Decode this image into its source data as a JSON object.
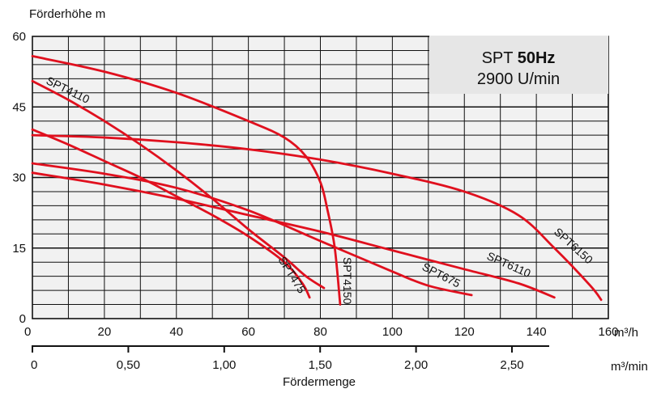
{
  "chart_data": {
    "type": "line",
    "title": "SPT 50Hz",
    "title_plain": "SPT",
    "title_bold": "50Hz",
    "subtitle": "2900 U/min",
    "ylabel": "Förderhöhe m",
    "xlabel": "Fördermenge",
    "x_unit": "m³/h",
    "x2_unit": "m³/min",
    "xlim": [
      0,
      160
    ],
    "ylim": [
      0,
      60
    ],
    "x_ticks": [
      "0",
      "20",
      "40",
      "60",
      "80",
      "100",
      "120",
      "140",
      "160"
    ],
    "y_ticks": [
      "0",
      "15",
      "30",
      "45",
      "60"
    ],
    "x2_ticks": [
      "0",
      "0,50",
      "1,00",
      "1,50",
      "2,00",
      "2,50"
    ],
    "x2_tick_values": [
      0,
      0.5,
      1.0,
      1.5,
      2.0,
      2.5
    ],
    "grid": true,
    "line_color": "#e0101e",
    "series": [
      {
        "name": "SPT4110",
        "points": [
          [
            0,
            50.5
          ],
          [
            10,
            46.5
          ],
          [
            20,
            42
          ],
          [
            30,
            37
          ],
          [
            40,
            31.5
          ],
          [
            50,
            25.5
          ],
          [
            60,
            19
          ],
          [
            70,
            13
          ],
          [
            76,
            9
          ],
          [
            81,
            6.5
          ]
        ]
      },
      {
        "name": "SPT4150",
        "points": [
          [
            0,
            55.8
          ],
          [
            20,
            52.5
          ],
          [
            40,
            48
          ],
          [
            60,
            42
          ],
          [
            70,
            38.5
          ],
          [
            76,
            34.5
          ],
          [
            80,
            29
          ],
          [
            82,
            23
          ],
          [
            84,
            15
          ],
          [
            85.5,
            3
          ]
        ]
      },
      {
        "name": "SPT475",
        "points": [
          [
            0,
            40.2
          ],
          [
            10,
            37
          ],
          [
            20,
            33.5
          ],
          [
            30,
            30
          ],
          [
            40,
            26
          ],
          [
            50,
            22
          ],
          [
            60,
            17.5
          ],
          [
            70,
            12
          ],
          [
            75,
            7.5
          ],
          [
            77,
            4.5
          ]
        ]
      },
      {
        "name": "SPT675",
        "points": [
          [
            0,
            33
          ],
          [
            20,
            30.8
          ],
          [
            40,
            27.8
          ],
          [
            60,
            23
          ],
          [
            80,
            16.5
          ],
          [
            100,
            10
          ],
          [
            110,
            7
          ],
          [
            122,
            5
          ]
        ]
      },
      {
        "name": "SPT6110",
        "points": [
          [
            0,
            31
          ],
          [
            20,
            28.5
          ],
          [
            40,
            25.5
          ],
          [
            60,
            22
          ],
          [
            80,
            18.5
          ],
          [
            100,
            14.5
          ],
          [
            120,
            10.5
          ],
          [
            135,
            7.5
          ],
          [
            145,
            4.5
          ]
        ]
      },
      {
        "name": "SPT6150",
        "points": [
          [
            0,
            39
          ],
          [
            20,
            38.5
          ],
          [
            40,
            37.5
          ],
          [
            60,
            36
          ],
          [
            80,
            33.8
          ],
          [
            100,
            30.8
          ],
          [
            120,
            27
          ],
          [
            135,
            22
          ],
          [
            145,
            15
          ],
          [
            155,
            7
          ],
          [
            158,
            4
          ]
        ]
      }
    ]
  }
}
